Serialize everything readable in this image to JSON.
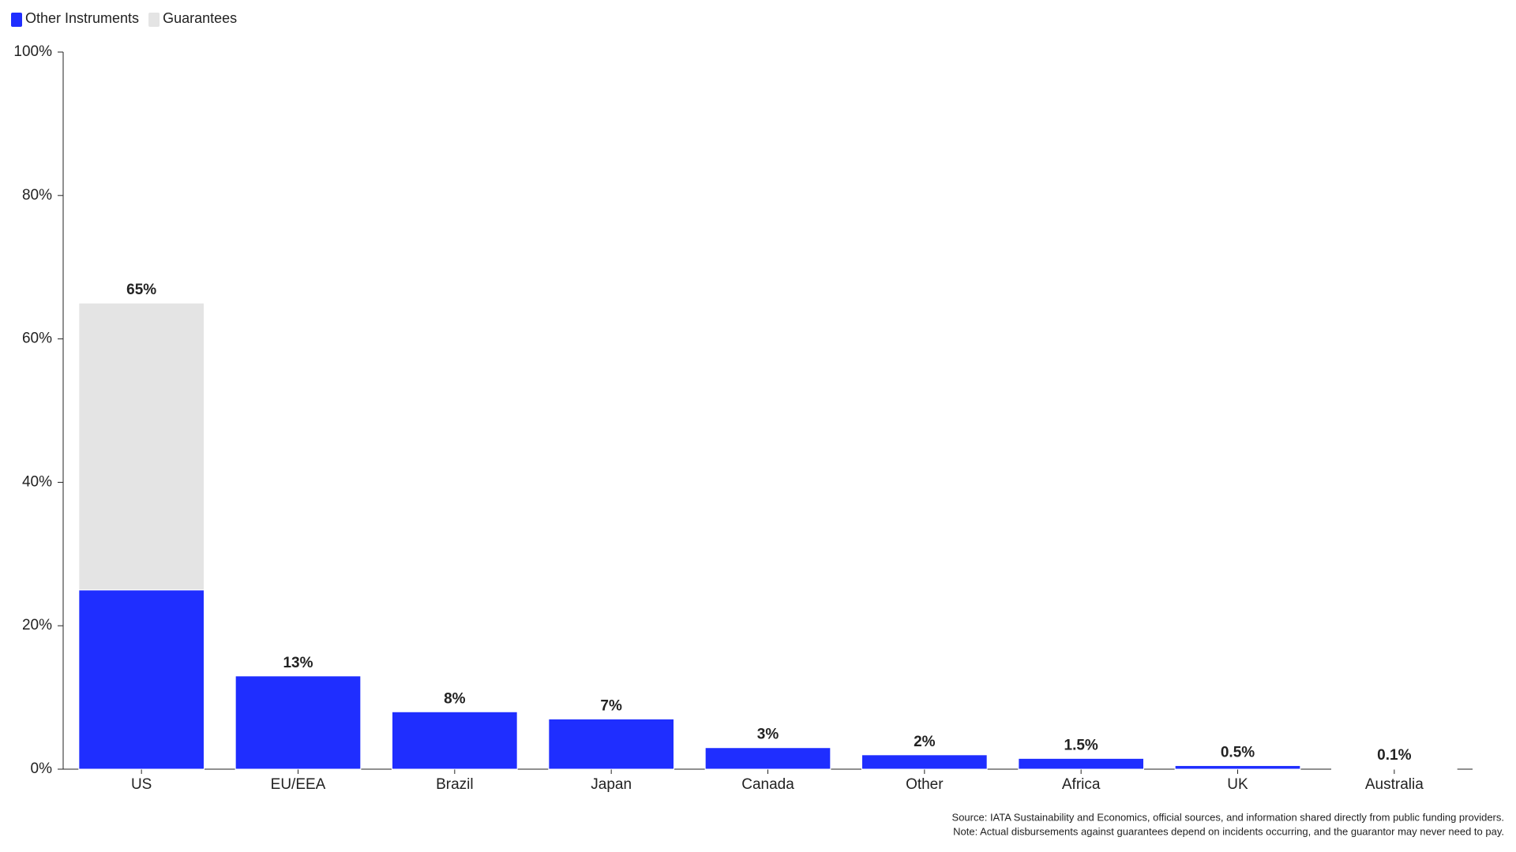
{
  "chart_data": {
    "type": "stacked_bar",
    "categories": [
      "US",
      "EU/EEA",
      "Brazil",
      "Japan",
      "Canada",
      "Other",
      "Africa",
      "UK",
      "Australia"
    ],
    "series": [
      {
        "name": "Other Instruments",
        "color": "#1f2eff",
        "values": [
          25,
          13,
          8,
          7,
          3,
          2,
          1.5,
          0.5,
          0.1
        ]
      },
      {
        "name": "Guarantees",
        "color": "#e4e4e4",
        "values": [
          40,
          0,
          0,
          0,
          0,
          0,
          0,
          0,
          0
        ]
      }
    ],
    "totals": [
      65,
      13,
      8,
      7,
      3,
      2,
      1.5,
      0.5,
      0.1
    ],
    "total_labels": [
      "65%",
      "13%",
      "8%",
      "7%",
      "3%",
      "2%",
      "1.5%",
      "0.5%",
      "0.1%"
    ],
    "ylim": [
      0,
      100
    ],
    "yticks": [
      {
        "value": 0,
        "label": "0%"
      },
      {
        "value": 20,
        "label": "20%"
      },
      {
        "value": 40,
        "label": "40%"
      },
      {
        "value": 60,
        "label": "60%"
      },
      {
        "value": 80,
        "label": "80%"
      },
      {
        "value": 100,
        "label": "100%"
      }
    ],
    "grid": false,
    "legend": "top-left",
    "source": "Source: IATA Sustainability and Economics, official sources, and information shared directly from public funding providers.",
    "note": "Note: Actual disbursements against guarantees depend on incidents occurring, and the guarantor may never need to pay."
  }
}
